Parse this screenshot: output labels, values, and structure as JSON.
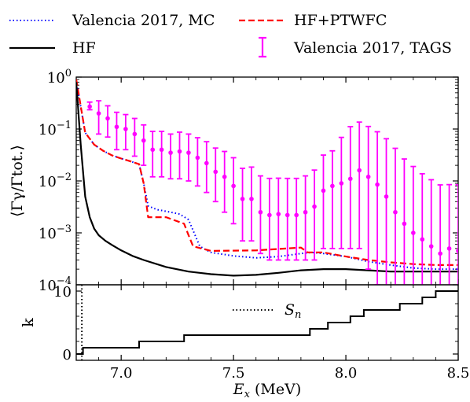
{
  "chart_data": [
    {
      "type": "line",
      "panel": "top",
      "ylabel": "⟨Γγ/Γtot.⟩",
      "yscale": "log",
      "ylim": [
        0.0001,
        1
      ],
      "xlim": [
        6.8,
        8.5
      ],
      "yticks": [
        {
          "value": 0.0001,
          "base": "10",
          "exp": "−4"
        },
        {
          "value": 0.001,
          "base": "10",
          "exp": "−3"
        },
        {
          "value": 0.01,
          "base": "10",
          "exp": "−2"
        },
        {
          "value": 0.1,
          "base": "10",
          "exp": "−1"
        },
        {
          "value": 1,
          "base": "10",
          "exp": "0"
        }
      ],
      "series": [
        {
          "name": "Valencia 2017, MC",
          "style": "dotted",
          "color": "#0000ff",
          "x": [
            6.8,
            6.84,
            6.88,
            6.92,
            6.96,
            7.0,
            7.04,
            7.08,
            7.1,
            7.12,
            7.16,
            7.18,
            7.22,
            7.26,
            7.3,
            7.35,
            7.4,
            7.5,
            7.6,
            7.7,
            7.8,
            7.85,
            7.9,
            8.0,
            8.1,
            8.2,
            8.3,
            8.4,
            8.5
          ],
          "y": [
            0.85,
            0.085,
            0.05,
            0.038,
            0.031,
            0.027,
            0.024,
            0.021,
            0.009,
            0.0033,
            0.0028,
            0.0027,
            0.0025,
            0.0023,
            0.0018,
            0.00055,
            0.00042,
            0.00036,
            0.00033,
            0.00035,
            0.0004,
            0.00042,
            0.0004,
            0.00035,
            0.00028,
            0.00024,
            0.00021,
            0.0002,
            0.0002
          ]
        },
        {
          "name": "HF+PTWFC",
          "style": "dashed",
          "color": "#ff0000",
          "x": [
            6.8,
            6.84,
            6.88,
            6.92,
            6.96,
            7.0,
            7.04,
            7.08,
            7.1,
            7.12,
            7.2,
            7.28,
            7.3,
            7.32,
            7.4,
            7.6,
            7.8,
            7.83,
            7.9,
            8.0,
            8.1,
            8.2,
            8.3,
            8.4,
            8.5
          ],
          "y": [
            0.9,
            0.085,
            0.05,
            0.038,
            0.031,
            0.027,
            0.024,
            0.021,
            0.009,
            0.002,
            0.002,
            0.0015,
            0.0009,
            0.00055,
            0.00045,
            0.00046,
            0.00052,
            0.00042,
            0.00042,
            0.00035,
            0.0003,
            0.00027,
            0.00025,
            0.00024,
            0.00024
          ]
        },
        {
          "name": "HF",
          "style": "solid",
          "color": "#000000",
          "x": [
            6.8,
            6.82,
            6.84,
            6.86,
            6.88,
            6.9,
            6.93,
            6.96,
            7.0,
            7.05,
            7.1,
            7.2,
            7.3,
            7.4,
            7.5,
            7.6,
            7.7,
            7.8,
            7.9,
            8.0,
            8.1,
            8.2,
            8.3,
            8.4,
            8.5
          ],
          "y": [
            0.8,
            0.05,
            0.005,
            0.002,
            0.0012,
            0.0009,
            0.0007,
            0.00058,
            0.00046,
            0.00036,
            0.0003,
            0.00022,
            0.00018,
            0.00016,
            0.00015,
            0.000155,
            0.00017,
            0.00019,
            0.0002,
            0.0002,
            0.00019,
            0.00018,
            0.00018,
            0.00018,
            0.00018
          ]
        },
        {
          "name": "Valencia 2017, TAGS",
          "style": "errorbar",
          "color": "#ff00ff",
          "x": [
            6.86,
            6.9,
            6.94,
            6.98,
            7.02,
            7.06,
            7.1,
            7.14,
            7.18,
            7.22,
            7.26,
            7.3,
            7.34,
            7.38,
            7.42,
            7.46,
            7.5,
            7.54,
            7.58,
            7.62,
            7.66,
            7.7,
            7.74,
            7.78,
            7.82,
            7.86,
            7.9,
            7.94,
            7.98,
            8.02,
            8.06,
            8.1,
            8.14,
            8.18,
            8.22,
            8.26,
            8.3,
            8.34,
            8.38,
            8.42,
            8.46,
            8.5
          ],
          "y": [
            0.27,
            0.2,
            0.16,
            0.11,
            0.1,
            0.08,
            0.06,
            0.04,
            0.04,
            0.035,
            0.037,
            0.035,
            0.028,
            0.022,
            0.015,
            0.012,
            0.008,
            0.0045,
            0.0045,
            0.0025,
            0.0022,
            0.0023,
            0.0022,
            0.0022,
            0.0025,
            0.0032,
            0.0065,
            0.008,
            0.009,
            0.011,
            0.016,
            0.012,
            0.0085,
            0.005,
            0.0025,
            0.0015,
            0.001,
            0.00075,
            0.00055,
            0.0004,
            0.0005,
            0.00045
          ],
          "err_low": [
            0.035,
            0.12,
            0.09,
            0.07,
            0.06,
            0.05,
            0.04,
            0.028,
            0.028,
            0.024,
            0.026,
            0.025,
            0.02,
            0.016,
            0.011,
            0.0095,
            0.0065,
            0.0038,
            0.0038,
            0.0021,
            0.0019,
            0.002,
            0.0019,
            0.0019,
            0.0022,
            0.0029,
            0.006,
            0.0075,
            0.0085,
            0.0105,
            0.0155,
            0.0118,
            0.0084,
            0.005,
            0.0025,
            0.0015,
            0.001,
            0.00075,
            0.00055,
            0.0004,
            0.0005,
            0.00045
          ],
          "err_high": [
            0.06,
            0.15,
            0.12,
            0.1,
            0.09,
            0.08,
            0.06,
            0.05,
            0.05,
            0.045,
            0.05,
            0.045,
            0.04,
            0.035,
            0.028,
            0.025,
            0.02,
            0.013,
            0.014,
            0.01,
            0.009,
            0.009,
            0.009,
            0.009,
            0.01,
            0.013,
            0.025,
            0.03,
            0.06,
            0.1,
            0.12,
            0.1,
            0.08,
            0.06,
            0.04,
            0.025,
            0.018,
            0.013,
            0.01,
            0.008,
            0.008,
            0.008
          ]
        }
      ],
      "legend": {
        "placement": "above",
        "entries": [
          {
            "label": "Valencia 2017, MC",
            "style": "dotted",
            "color": "#0000ff"
          },
          {
            "label": "HF+PTWFC",
            "style": "dashed",
            "color": "#ff0000"
          },
          {
            "label": "HF",
            "style": "solid",
            "color": "#000000"
          },
          {
            "label": "Valencia 2017, TAGS",
            "style": "errorbar",
            "color": "#ff00ff"
          }
        ]
      }
    },
    {
      "type": "line",
      "panel": "bottom",
      "ylabel": "k",
      "xlabel": "Ex (MeV)",
      "xlim": [
        6.8,
        8.5
      ],
      "ylim": [
        -1,
        11
      ],
      "yticks": [
        "0",
        "10"
      ],
      "xticks": [
        "7.0",
        "7.5",
        "8.0",
        "8.5"
      ],
      "annotation": "Sn",
      "series": [
        {
          "name": "k",
          "style": "step",
          "color": "#000000",
          "x": [
            6.8,
            6.82,
            6.83,
            7.08,
            7.28,
            7.84,
            7.92,
            8.02,
            8.08,
            8.16,
            8.24,
            8.34,
            8.4,
            8.5
          ],
          "y": [
            0,
            0,
            1,
            2,
            3,
            4,
            5,
            6,
            7,
            7,
            8,
            9,
            10,
            10
          ]
        },
        {
          "name": "Sn",
          "style": "dotted-vertical",
          "color": "#000000",
          "x": 6.825
        }
      ]
    }
  ]
}
